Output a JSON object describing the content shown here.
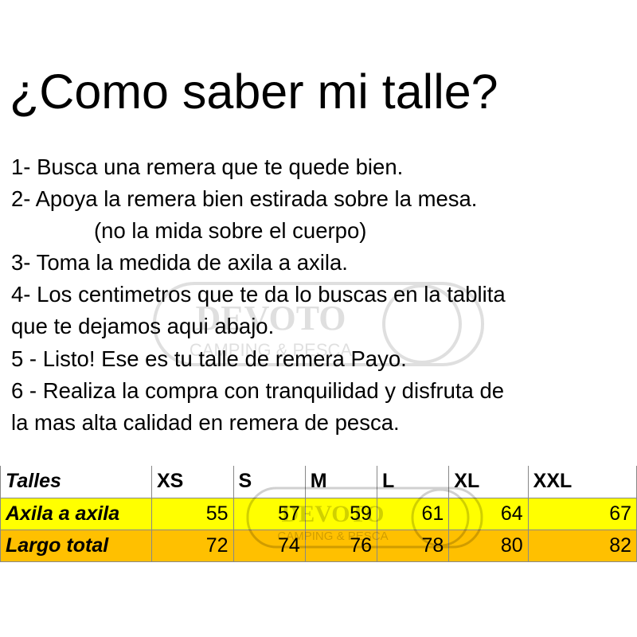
{
  "title": "¿Como saber mi talle?",
  "steps": [
    "1- Busca una remera que te quede bien.",
    "2- Apoya la remera bien estirada sobre la mesa.",
    "(no la mida sobre el cuerpo)",
    "3- Toma la medida de axila a axila.",
    "4- Los centimetros que te da lo buscas en la tablita",
    "que te dejamos aqui abajo.",
    "5 - Listo! Ese es tu talle de remera Payo.",
    "6 - Realiza la compra con tranquilidad y disfruta de",
    "la mas alta calidad en remera de pesca."
  ],
  "watermark": {
    "brand": "DEVOTO",
    "tagline": "CAMPING & PESCA"
  },
  "size_table": {
    "header_label": "Talles",
    "sizes": [
      "XS",
      "S",
      "M",
      "L",
      "XL",
      "XXL"
    ],
    "rows": [
      {
        "label": "Axila a axila",
        "values": [
          "55",
          "57",
          "59",
          "61",
          "64",
          "67"
        ],
        "color": "#ffff00"
      },
      {
        "label": "Largo total",
        "values": [
          "72",
          "74",
          "76",
          "78",
          "80",
          "82"
        ],
        "color": "#ffc000"
      }
    ]
  }
}
